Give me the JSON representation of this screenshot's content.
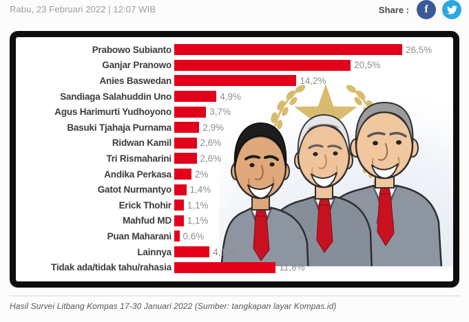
{
  "header": {
    "date": "Rabu, 23 Februari 2022 | 12:07 WIB"
  },
  "share": {
    "label": "Share :",
    "buttons": [
      {
        "name": "facebook",
        "icon": "facebook-f-icon",
        "color": "#3b5998"
      },
      {
        "name": "twitter",
        "icon": "twitter-bird-icon",
        "color": "#2aa9e0"
      }
    ]
  },
  "infographic": {
    "frame_color": "#0d0d0d",
    "illustration": {
      "description": "Caricatures of Anies Baswedan, Ganjar Pranowo and Prabowo Subianto in gray suits, white shirts and red ties, standing in front of a gold star with a rice-stalk wreath",
      "suit_color": "#8d95a1",
      "tie_color": "#c81220",
      "emblem_color": "#d8bb6e"
    }
  },
  "chart_data": {
    "type": "bar",
    "orientation": "horizontal",
    "title": "",
    "xlabel": "",
    "ylabel": "",
    "categories": [
      "Prabowo Subianto",
      "Ganjar Pranowo",
      "Anies Baswedan",
      "Sandiaga Salahuddin Uno",
      "Agus Harimurti Yudhoyono",
      "Basuki Tjahaja Purnama",
      "Ridwan Kamil",
      "Tri Rismaharini",
      "Andika Perkasa",
      "Gatot Nurmantyo",
      "Erick Thohir",
      "Mahfud MD",
      "Puan Maharani",
      "Lainnya",
      "Tidak ada/tidak tahu/rahasia"
    ],
    "values": [
      26.5,
      20.5,
      14.2,
      4.9,
      3.7,
      2.9,
      2.6,
      2.6,
      2,
      1.4,
      1.1,
      1.1,
      0.6,
      4.1,
      11.8
    ],
    "value_labels": [
      "26,5%",
      "20,5%",
      "14,2%",
      "4,9%",
      "3,7%",
      "2,9%",
      "2,6%",
      "2,6%",
      "2%",
      "1,4%",
      "1,1%",
      "1,1%",
      "0,6%",
      "4,1%",
      "11,8%"
    ],
    "xlim": [
      0,
      26.5
    ],
    "grid": false,
    "legend": false,
    "bar_color": "#e2001a",
    "label_color": "#3b3b3b",
    "value_color": "#8d8d8d"
  },
  "caption": {
    "text": "Hasil Survei Litbang Kompas 17-30 Januari 2022 (Sumber: tangkapan layar Kompas.id)"
  }
}
